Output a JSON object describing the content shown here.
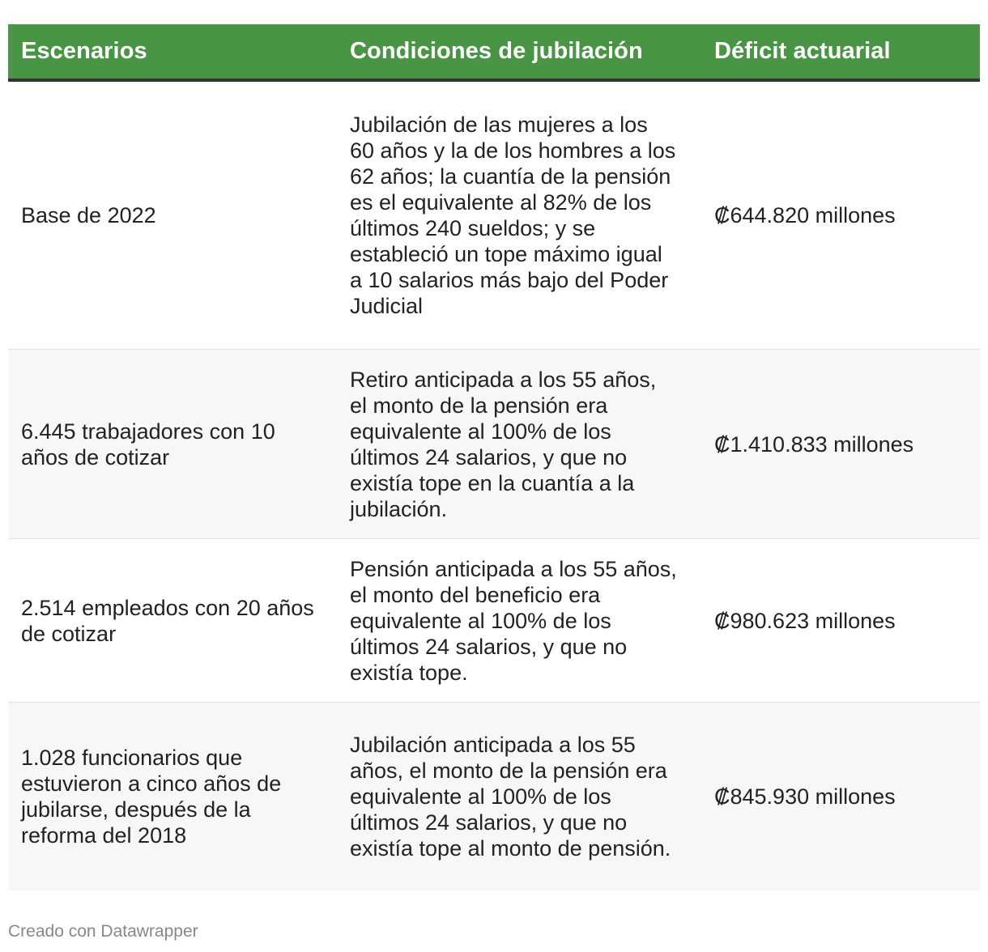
{
  "table": {
    "headers": [
      "Escenarios",
      "Condiciones de jubilación",
      "Déficit actuarial"
    ],
    "rows": [
      {
        "scenario": "Base de 2022",
        "conditions": "Jubilación de las mujeres a los 60 años y la de los hombres a los 62 años; la cuantía de la pensión es el equivalente al 82% de los últimos 240 sueldos; y se estableció un tope máximo igual a 10 salarios más bajo del Poder Judicial",
        "deficit": "₡644.820 millones"
      },
      {
        "scenario": "6.445 trabajadores con 10 años de cotizar",
        "conditions": "Retiro anticipada a los 55 años, el monto de la pensión era equivalente al 100% de los últimos 24 salarios, y que no existía tope en la cuantía a la jubilación.",
        "deficit": "₡1.410.833 millones"
      },
      {
        "scenario": "2.514 empleados con 20 años de cotizar",
        "conditions": "Pensión anticipada a los 55 años, el monto del beneficio era equivalente al 100% de los últimos 24 salarios, y que no existía tope.",
        "deficit": "₡980.623 millones"
      },
      {
        "scenario": "1.028 funcionarios que estuvieron a cinco años de jubilarse, después de la reforma del 2018",
        "conditions": "Jubilación anticipada a los 55 años, el monto de la pensión era equivalente al 100% de los últimos 24 salarios, y que no existía tope al monto de pensión.",
        "deficit": "₡845.930 millones"
      }
    ]
  },
  "footer": {
    "credit": "Creado con Datawrapper"
  },
  "colors": {
    "header_bg": "#4a9445",
    "header_text": "#ffffff",
    "header_rule": "#333333",
    "row_alt_bg": "#f7f7f7",
    "footer_text": "#888888"
  }
}
